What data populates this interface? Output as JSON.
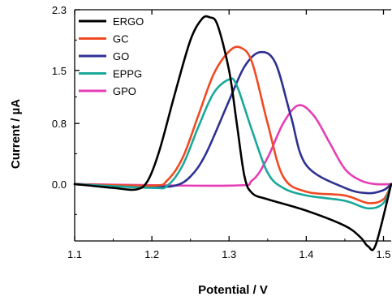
{
  "chart_data": {
    "type": "line",
    "xlabel": "Potential / V",
    "ylabel": "Current / µA",
    "xlim": [
      1.1,
      1.51
    ],
    "ylim": [
      -0.75,
      2.3
    ],
    "x_ticks": [
      1.1,
      1.2,
      1.3,
      1.4,
      1.5
    ],
    "x_tick_labels": [
      "1.1",
      "1.2",
      "1.3",
      "1.4",
      "1.5"
    ],
    "y_ticks": [
      0.0,
      0.8,
      1.5,
      2.3
    ],
    "y_tick_labels": [
      "0.0",
      "0.8",
      "1.5",
      "2.3"
    ],
    "grid": false,
    "legend_position": "top-left",
    "series": [
      {
        "name": "ERGO",
        "color": "#000000",
        "x": [
          1.1,
          1.15,
          1.18,
          1.195,
          1.21,
          1.23,
          1.25,
          1.265,
          1.275,
          1.285,
          1.3,
          1.31,
          1.32,
          1.33,
          1.35,
          1.4,
          1.45,
          1.47,
          1.48,
          1.49,
          1.51
        ],
        "y": [
          0.0,
          -0.05,
          -0.07,
          0.05,
          0.45,
          1.2,
          1.9,
          2.18,
          2.2,
          2.1,
          1.5,
          0.8,
          0.1,
          -0.12,
          -0.2,
          -0.35,
          -0.55,
          -0.7,
          -0.82,
          -0.8,
          0.0
        ]
      },
      {
        "name": "GC",
        "color": "#f04a23",
        "x": [
          1.1,
          1.2,
          1.22,
          1.24,
          1.26,
          1.28,
          1.3,
          1.315,
          1.33,
          1.35,
          1.37,
          1.4,
          1.45,
          1.48,
          1.5,
          1.51
        ],
        "y": [
          0.0,
          -0.02,
          0.05,
          0.35,
          0.9,
          1.45,
          1.75,
          1.8,
          1.6,
          0.8,
          0.1,
          -0.1,
          -0.15,
          -0.25,
          -0.2,
          0.0
        ]
      },
      {
        "name": "GO",
        "color": "#2e3192",
        "x": [
          1.1,
          1.2,
          1.23,
          1.25,
          1.27,
          1.3,
          1.32,
          1.34,
          1.36,
          1.38,
          1.4,
          1.45,
          1.48,
          1.5,
          1.51
        ],
        "y": [
          0.0,
          -0.03,
          -0.02,
          0.1,
          0.4,
          1.1,
          1.55,
          1.74,
          1.6,
          0.9,
          0.25,
          -0.05,
          -0.12,
          -0.08,
          0.0
        ]
      },
      {
        "name": "EPPG",
        "color": "#1aa89b",
        "x": [
          1.1,
          1.2,
          1.22,
          1.24,
          1.26,
          1.28,
          1.3,
          1.31,
          1.33,
          1.35,
          1.37,
          1.4,
          1.45,
          1.48,
          1.5,
          1.51
        ],
        "y": [
          0.0,
          -0.05,
          -0.02,
          0.25,
          0.75,
          1.2,
          1.38,
          1.3,
          0.7,
          0.15,
          -0.05,
          -0.15,
          -0.22,
          -0.32,
          -0.25,
          0.0
        ]
      },
      {
        "name": "GPO",
        "color": "#e63db5",
        "x": [
          1.1,
          1.3,
          1.33,
          1.35,
          1.37,
          1.39,
          1.41,
          1.43,
          1.45,
          1.47,
          1.49,
          1.51
        ],
        "y": [
          0.0,
          -0.02,
          0.05,
          0.35,
          0.8,
          1.04,
          0.9,
          0.55,
          0.2,
          0.05,
          0.0,
          0.0
        ]
      }
    ]
  }
}
